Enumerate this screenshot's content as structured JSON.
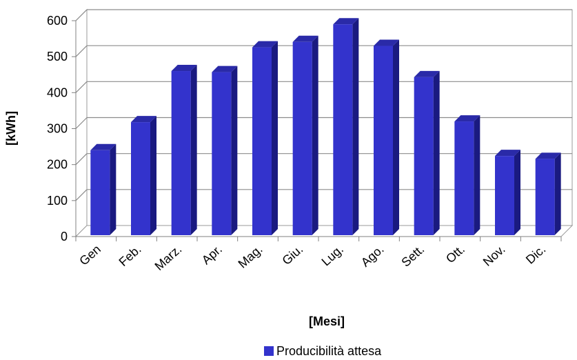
{
  "chart_data": {
    "type": "bar",
    "categories": [
      "Gen",
      "Feb.",
      "Marz.",
      "Apr.",
      "Mag.",
      "Giu.",
      "Lug.",
      "Ago.",
      "Sett.",
      "Ott.",
      "Nov.",
      "Dic."
    ],
    "series": [
      {
        "name": "Producibilità attesa",
        "values": [
          240,
          318,
          460,
          457,
          526,
          541,
          590,
          530,
          443,
          320,
          224,
          216
        ],
        "color": "#3333cc"
      }
    ],
    "xlabel": "[Mesi]",
    "ylabel": "[kWh]",
    "ylim": [
      0,
      600
    ],
    "yticks": [
      "0",
      "100",
      "200",
      "300",
      "400",
      "500",
      "600"
    ],
    "grid": true,
    "legend": "bottom",
    "style": "3d-column"
  }
}
